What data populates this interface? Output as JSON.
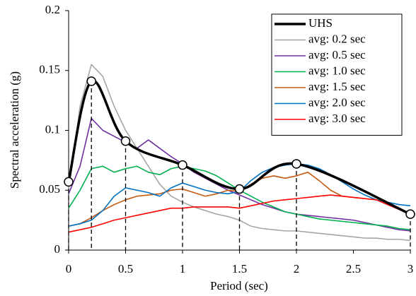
{
  "chart_data": {
    "type": "line",
    "xlabel": "Period (sec)",
    "ylabel": "Spectral acceleration (g)",
    "x": [
      0,
      0.1,
      0.2,
      0.3,
      0.4,
      0.5,
      0.6,
      0.7,
      0.8,
      0.9,
      1,
      1.1,
      1.2,
      1.3,
      1.4,
      1.5,
      1.6,
      1.7,
      1.8,
      1.9,
      2,
      2.1,
      2.2,
      2.3,
      2.4,
      2.5,
      2.6,
      2.7,
      2.8,
      2.9,
      3
    ],
    "series": [
      {
        "name": "UHS",
        "color": "#000000",
        "x": [
          0,
          0.2,
          0.5,
          1,
          1.5,
          2,
          3
        ],
        "values": [
          0.057,
          0.141,
          0.091,
          0.071,
          0.051,
          0.072,
          0.03
        ]
      },
      {
        "name": "avg: 0.2 sec",
        "color": "#a6a6a6",
        "values": [
          0.05,
          0.12,
          0.155,
          0.145,
          0.12,
          0.1,
          0.085,
          0.07,
          0.055,
          0.045,
          0.04,
          0.036,
          0.033,
          0.03,
          0.028,
          0.025,
          0.02,
          0.018,
          0.017,
          0.016,
          0.016,
          0.015,
          0.014,
          0.013,
          0.012,
          0.011,
          0.01,
          0.01,
          0.009,
          0.009,
          0.008
        ]
      },
      {
        "name": "avg: 0.5 sec",
        "color": "#7030a0",
        "values": [
          0.047,
          0.07,
          0.11,
          0.1,
          0.095,
          0.09,
          0.085,
          0.092,
          0.085,
          0.078,
          0.072,
          0.065,
          0.06,
          0.055,
          0.05,
          0.046,
          0.042,
          0.038,
          0.035,
          0.032,
          0.03,
          0.029,
          0.028,
          0.027,
          0.026,
          0.025,
          0.023,
          0.021,
          0.019,
          0.017,
          0.016
        ]
      },
      {
        "name": "avg: 1.0 sec",
        "color": "#00b050",
        "values": [
          0.035,
          0.05,
          0.068,
          0.07,
          0.065,
          0.068,
          0.07,
          0.065,
          0.063,
          0.068,
          0.07,
          0.068,
          0.066,
          0.062,
          0.056,
          0.05,
          0.045,
          0.04,
          0.036,
          0.032,
          0.03,
          0.028,
          0.026,
          0.025,
          0.024,
          0.023,
          0.022,
          0.021,
          0.02,
          0.018,
          0.017
        ]
      },
      {
        "name": "avg: 1.5 sec",
        "color": "#c55a11",
        "values": [
          0.02,
          0.022,
          0.027,
          0.033,
          0.038,
          0.042,
          0.045,
          0.046,
          0.047,
          0.05,
          0.051,
          0.048,
          0.045,
          0.047,
          0.05,
          0.049,
          0.055,
          0.06,
          0.062,
          0.06,
          0.062,
          0.065,
          0.058,
          0.05,
          0.045,
          0.044,
          0.043,
          0.042,
          0.04,
          0.035,
          0.03
        ]
      },
      {
        "name": "avg: 2.0 sec",
        "color": "#0070c0",
        "values": [
          0.02,
          0.022,
          0.025,
          0.033,
          0.045,
          0.052,
          0.05,
          0.048,
          0.045,
          0.052,
          0.056,
          0.053,
          0.05,
          0.048,
          0.047,
          0.049,
          0.058,
          0.065,
          0.069,
          0.071,
          0.072,
          0.071,
          0.068,
          0.063,
          0.057,
          0.051,
          0.046,
          0.042,
          0.04,
          0.038,
          0.037
        ]
      },
      {
        "name": "avg: 3.0 sec",
        "color": "#ff0000",
        "values": [
          0.015,
          0.017,
          0.019,
          0.022,
          0.025,
          0.027,
          0.029,
          0.031,
          0.033,
          0.035,
          0.035,
          0.036,
          0.036,
          0.036,
          0.036,
          0.035,
          0.037,
          0.039,
          0.041,
          0.042,
          0.043,
          0.044,
          0.045,
          0.046,
          0.045,
          0.044,
          0.043,
          0.042,
          0.038,
          0.034,
          0.03
        ]
      }
    ],
    "xlim": [
      0,
      3
    ],
    "xticks": [
      0,
      0.5,
      1,
      1.5,
      2,
      2.5,
      3
    ],
    "ylim": [
      0,
      0.2
    ],
    "yticks": [
      0,
      0.05,
      0.1,
      0.15,
      0.2
    ],
    "legend": "upper right"
  }
}
